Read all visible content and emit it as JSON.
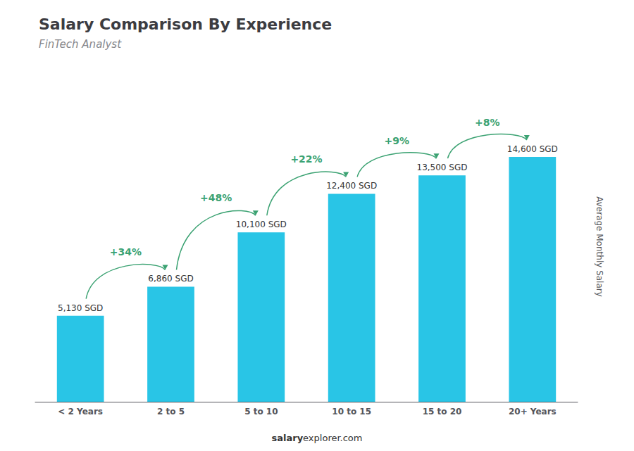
{
  "chart_data": {
    "type": "bar",
    "title": "Salary Comparison By Experience",
    "subtitle": "FinTech Analyst",
    "ylabel": "Average Monthly Salary",
    "categories": [
      "< 2 Years",
      "2 to 5",
      "5 to 10",
      "10 to 15",
      "15 to 20",
      "20+ Years"
    ],
    "values": [
      5130,
      6860,
      10100,
      12400,
      13500,
      14600
    ],
    "value_labels": [
      "5,130 SGD",
      "6,860 SGD",
      "10,100 SGD",
      "12,400 SGD",
      "13,500 SGD",
      "14,600 SGD"
    ],
    "data_labels": true,
    "color": "#29C5E6",
    "ylim": [
      0,
      18500
    ],
    "tick_labels": "x",
    "grid": false,
    "annotations": [
      "+34%",
      "+48%",
      "+22%",
      "+9%",
      "+8%"
    ],
    "footer": [
      "salary",
      "explorer.com"
    ]
  }
}
